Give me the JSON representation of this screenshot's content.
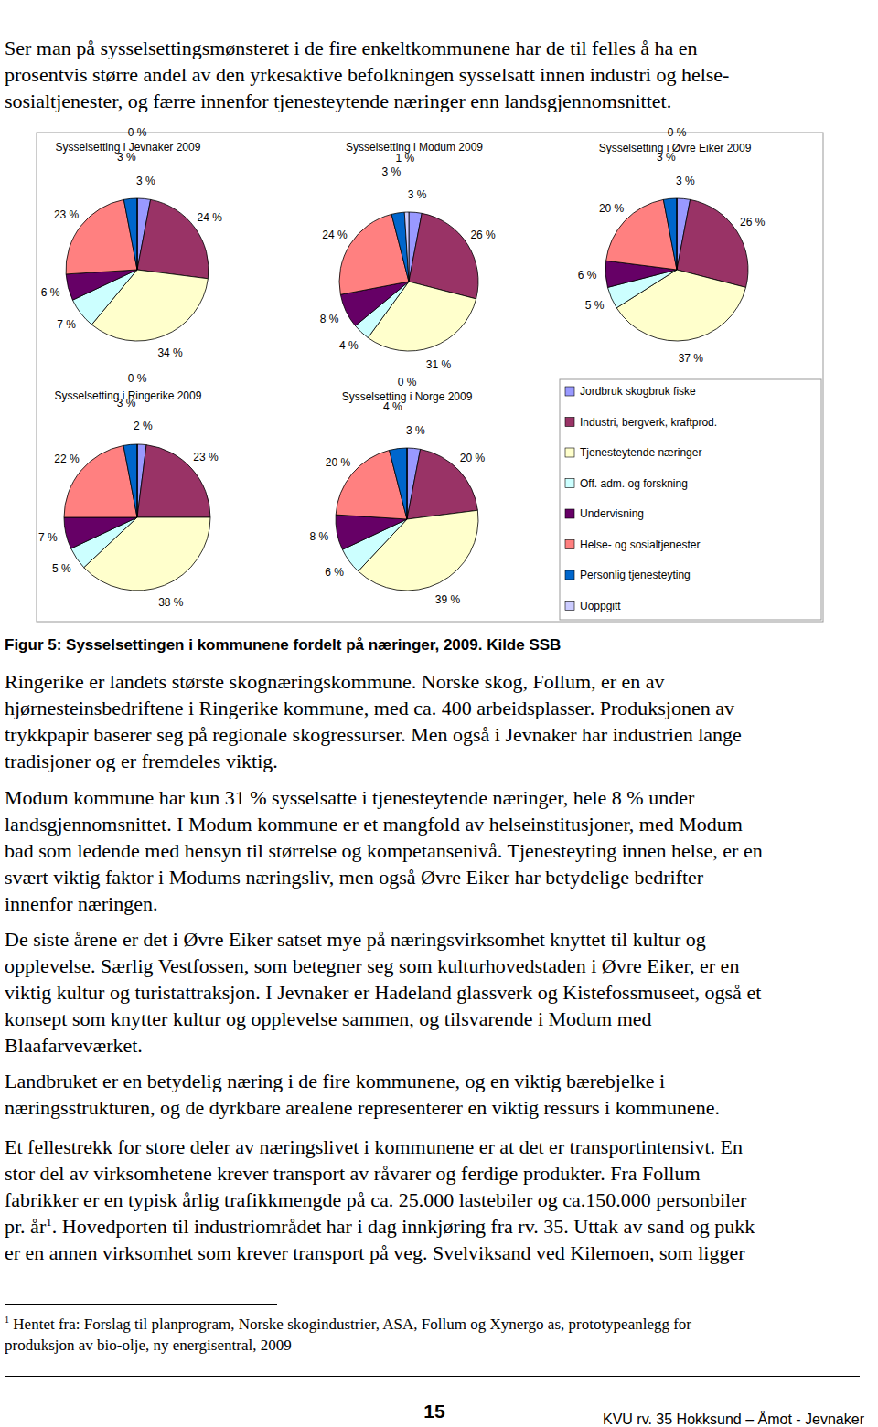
{
  "intro": {
    "lines": [
      "Ser man på sysselsettingsmønsteret i de fire enkeltkommunene har de til felles å ha en",
      "prosentvis større andel av den yrkesaktive befolkningen sysselsatt innen industri og helse-",
      "sosialtjenester, og færre innenfor tjenesteytende næringer enn landsgjennomsnittet."
    ]
  },
  "chart_data": [
    {
      "type": "pie",
      "title": "Sysselsetting i Jevnaker  2009",
      "values": [
        3,
        24,
        34,
        7,
        6,
        23,
        3,
        0
      ],
      "value_labels": [
        "3 %",
        "24 %",
        "34 %",
        "7 %",
        "6 %",
        "23 %",
        "3 %",
        "0 %"
      ],
      "colors": [
        "#9999ff",
        "#993366",
        "#ffffcc",
        "#ccffff",
        "#660066",
        "#ff8080",
        "#0066cc",
        "#ccccff"
      ],
      "data_labels": true
    },
    {
      "type": "pie",
      "title": "Sysselsetting i Modum 2009",
      "values": [
        3,
        26,
        31,
        4,
        8,
        24,
        3,
        1
      ],
      "value_labels": [
        "3 %",
        "26 %",
        "31 %",
        "4 %",
        "8 %",
        "24 %",
        "3 %",
        "1 %"
      ],
      "colors": [
        "#9999ff",
        "#993366",
        "#ffffcc",
        "#ccffff",
        "#660066",
        "#ff8080",
        "#0066cc",
        "#ccccff"
      ],
      "data_labels": true
    },
    {
      "type": "pie",
      "title": "Sysselsetting i Øvre Eiker 2009",
      "values": [
        3,
        26,
        37,
        5,
        6,
        20,
        3,
        0
      ],
      "value_labels": [
        "3 %",
        "26 %",
        "37 %",
        "5 %",
        "6 %",
        "20 %",
        "3 %",
        "0 %"
      ],
      "colors": [
        "#9999ff",
        "#993366",
        "#ffffcc",
        "#ccffff",
        "#660066",
        "#ff8080",
        "#0066cc",
        "#ccccff"
      ],
      "data_labels": true
    },
    {
      "type": "pie",
      "title": "Sysselsetting i Ringerike  2009",
      "values": [
        2,
        23,
        38,
        5,
        7,
        22,
        3,
        0
      ],
      "value_labels": [
        "2 %",
        "23 %",
        "38 %",
        "5 %",
        "7 %",
        "22 %",
        "3 %",
        "0 %"
      ],
      "colors": [
        "#9999ff",
        "#993366",
        "#ffffcc",
        "#ccffff",
        "#660066",
        "#ff8080",
        "#0066cc",
        "#ccccff"
      ],
      "data_labels": true
    },
    {
      "type": "pie",
      "title": "Sysselsetting i Norge 2009",
      "values": [
        3,
        20,
        39,
        6,
        8,
        20,
        4,
        0
      ],
      "value_labels": [
        "3 %",
        "20 %",
        "39 %",
        "6 %",
        "8 %",
        "20 %",
        "4 %",
        "0 %"
      ],
      "colors": [
        "#9999ff",
        "#993366",
        "#ffffcc",
        "#ccffff",
        "#660066",
        "#ff8080",
        "#0066cc",
        "#ccccff"
      ],
      "data_labels": true
    }
  ],
  "legend": {
    "categories": [
      "Jordbruk skogbruk fiske",
      "Industri, bergverk, kraftprod.",
      "Tjenesteytende næringer",
      "Off. adm. og forskning",
      "Undervisning",
      "Helse- og sosialtjenester",
      "Personlig tjenesteyting",
      "Uoppgitt"
    ]
  },
  "caption": "Figur 5: Sysselsettingen i kommunene fordelt på næringer, 2009. Kilde SSB",
  "paragraphs": [
    {
      "lines": [
        "Ringerike er landets største skognæringskommune. Norske skog, Follum, er en av",
        "hjørnesteinsbedriftene i Ringerike kommune, med ca. 400 arbeidsplasser. Produksjonen av",
        "trykkpapir baserer seg på regionale skogressurser. Men også i Jevnaker har industrien lange",
        "tradisjoner og er fremdeles viktig."
      ]
    },
    {
      "lines": [
        "Modum kommune har kun 31 % sysselsatte i tjenesteytende næringer, hele 8 % under",
        "landsgjennomsnittet. I Modum kommune er et mangfold av helseinstitusjoner, med Modum",
        "bad som ledende med hensyn til størrelse og kompetansenivå. Tjenesteyting innen helse, er en",
        "svært viktig faktor i Modums næringsliv, men også Øvre Eiker har betydelige bedrifter",
        "innenfor næringen."
      ]
    },
    {
      "lines": [
        "De siste årene er det i Øvre Eiker satset mye på næringsvirksomhet knyttet til kultur og",
        "opplevelse. Særlig Vestfossen, som betegner seg som kulturhovedstaden i Øvre Eiker, er en",
        "viktig kultur og turistattraksjon. I Jevnaker er Hadeland glassverk og Kistefossmuseet, også et",
        "konsept som knytter kultur og opplevelse sammen, og tilsvarende i Modum med",
        "Blaafarveværket."
      ]
    },
    {
      "lines": [
        "Landbruket er en betydelig næring i de fire kommunene, og en viktig bærebjelke i",
        "næringsstrukturen, og de dyrkbare arealene representerer en viktig ressurs i kommunene."
      ]
    },
    {
      "lines": [
        "Et fellestrekk for store deler av næringslivet i kommunene er at det er transportintensivt. En",
        "stor del av virksomhetene krever transport av råvarer og ferdige produkter. Fra Follum",
        "fabrikker er en typisk årlig trafikkmengde på ca. 25.000 lastebiler og ca.150.000 personbiler",
        {
          "before": "pr. år",
          "sup": "1",
          "after": ". Hovedporten til industriområdet har i dag innkjøring fra rv. 35. Uttak av sand og pukk"
        },
        "er en annen virksomhet som krever transport på veg. Svelviksand ved Kilemoen, som ligger"
      ]
    }
  ],
  "footnote": {
    "marker": "1",
    "lines": [
      "Hentet fra: Forslag til planprogram, Norske skogindustrier, ASA, Follum og Xynergo as, prototypeanlegg for",
      "produksjon av bio-olje, ny energisentral, 2009"
    ]
  },
  "page_number": "15",
  "footer": "KVU rv. 35 Hokksund – Åmot - Jevnaker"
}
